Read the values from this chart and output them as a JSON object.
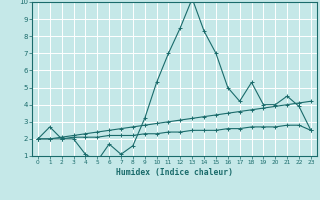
{
  "xlabel": "Humidex (Indice chaleur)",
  "xlim": [
    -0.5,
    23.5
  ],
  "ylim": [
    1,
    10
  ],
  "yticks": [
    1,
    2,
    3,
    4,
    5,
    6,
    7,
    8,
    9,
    10
  ],
  "xticks": [
    0,
    1,
    2,
    3,
    4,
    5,
    6,
    7,
    8,
    9,
    10,
    11,
    12,
    13,
    14,
    15,
    16,
    17,
    18,
    19,
    20,
    21,
    22,
    23
  ],
  "background_color": "#c5e8e8",
  "grid_color": "#ffffff",
  "line_color": "#1a6b6b",
  "series": [
    {
      "x": [
        0,
        1,
        2,
        3,
        4,
        5,
        6,
        7,
        8,
        9,
        10,
        11,
        12,
        13,
        14,
        15,
        16,
        17,
        18,
        19,
        20,
        21,
        22,
        23
      ],
      "y": [
        2.0,
        2.7,
        2.0,
        2.0,
        1.1,
        0.7,
        1.7,
        1.1,
        1.6,
        3.2,
        5.3,
        7.0,
        8.5,
        10.2,
        8.3,
        7.0,
        5.0,
        4.2,
        5.3,
        4.0,
        4.0,
        4.5,
        3.9,
        2.5
      ]
    },
    {
      "x": [
        0,
        1,
        2,
        3,
        4,
        5,
        6,
        7,
        8,
        9,
        10,
        11,
        12,
        13,
        14,
        15,
        16,
        17,
        18,
        19,
        20,
        21,
        22,
        23
      ],
      "y": [
        2.0,
        2.0,
        2.1,
        2.2,
        2.3,
        2.4,
        2.5,
        2.6,
        2.7,
        2.8,
        2.9,
        3.0,
        3.1,
        3.2,
        3.3,
        3.4,
        3.5,
        3.6,
        3.7,
        3.8,
        3.9,
        4.0,
        4.1,
        4.2
      ]
    },
    {
      "x": [
        0,
        1,
        2,
        3,
        4,
        5,
        6,
        7,
        8,
        9,
        10,
        11,
        12,
        13,
        14,
        15,
        16,
        17,
        18,
        19,
        20,
        21,
        22,
        23
      ],
      "y": [
        2.0,
        2.0,
        2.0,
        2.1,
        2.1,
        2.1,
        2.2,
        2.2,
        2.2,
        2.3,
        2.3,
        2.4,
        2.4,
        2.5,
        2.5,
        2.5,
        2.6,
        2.6,
        2.7,
        2.7,
        2.7,
        2.8,
        2.8,
        2.5
      ]
    }
  ]
}
